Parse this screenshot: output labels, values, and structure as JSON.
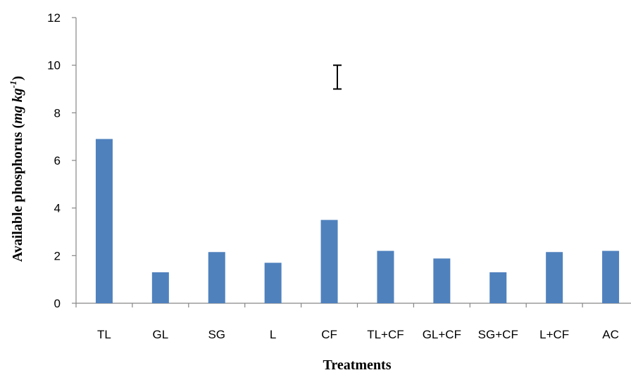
{
  "chart_data": {
    "type": "bar",
    "categories": [
      "TL",
      "GL",
      "SG",
      "L",
      "CF",
      "TL+CF",
      "GL+CF",
      "SG+CF",
      "L+CF",
      "AC"
    ],
    "values": [
      6.9,
      1.3,
      2.15,
      1.7,
      3.5,
      2.2,
      1.88,
      1.3,
      2.15,
      2.2
    ],
    "xlabel": "Treatments",
    "ylabel": {
      "main": "Available phosphorus (",
      "unit": "mg kg",
      "superscript": "-1",
      "close": ")"
    },
    "ylim": [
      0,
      12
    ],
    "yticks": [
      0,
      2,
      4,
      6,
      8,
      10,
      12
    ],
    "grid": false,
    "legend": "none",
    "error_bar": {
      "center": 9.5,
      "low": 9.0,
      "high": 10.0
    },
    "bar_color": "#4f81bd"
  }
}
